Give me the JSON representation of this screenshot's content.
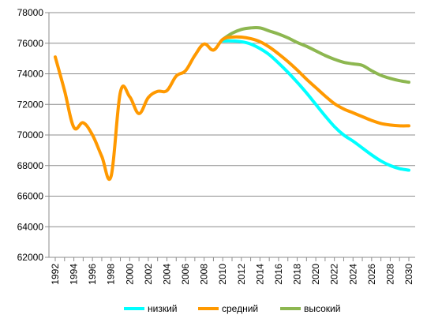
{
  "chart_data": {
    "type": "line",
    "title": "",
    "xlabel": "",
    "ylabel": "",
    "ylim": [
      62000,
      78000
    ],
    "xlim": [
      1992,
      2030
    ],
    "y_ticks": [
      "62000",
      "64000",
      "66000",
      "68000",
      "70000",
      "72000",
      "74000",
      "76000",
      "78000"
    ],
    "x_ticks": [
      "1992",
      "1994",
      "1996",
      "1998",
      "2000",
      "2002",
      "2004",
      "2006",
      "2008",
      "2010",
      "2012",
      "2014",
      "2016",
      "2018",
      "2020",
      "2022",
      "2024",
      "2026",
      "2028",
      "2030"
    ],
    "grid": "horizontal",
    "legend_position": "bottom",
    "series": [
      {
        "name": "низкий",
        "color": "#00ffff",
        "points": [
          [
            2010,
            76150
          ],
          [
            2011,
            76150
          ],
          [
            2012,
            76100
          ],
          [
            2013,
            75950
          ],
          [
            2014,
            75650
          ],
          [
            2015,
            75250
          ],
          [
            2016,
            74700
          ],
          [
            2017,
            74100
          ],
          [
            2018,
            73450
          ],
          [
            2019,
            72750
          ],
          [
            2020,
            72000
          ],
          [
            2021,
            71250
          ],
          [
            2022,
            70550
          ],
          [
            2023,
            70000
          ],
          [
            2024,
            69600
          ],
          [
            2025,
            69150
          ],
          [
            2026,
            68700
          ],
          [
            2027,
            68300
          ],
          [
            2028,
            68000
          ],
          [
            2029,
            67800
          ],
          [
            2030,
            67700
          ]
        ]
      },
      {
        "name": "средний",
        "color": "#ff9900",
        "points": [
          [
            1992,
            75100
          ],
          [
            1993,
            72900
          ],
          [
            1994,
            70500
          ],
          [
            1995,
            70800
          ],
          [
            1996,
            70000
          ],
          [
            1997,
            68600
          ],
          [
            1998,
            67300
          ],
          [
            1999,
            72800
          ],
          [
            2000,
            72500
          ],
          [
            2001,
            71400
          ],
          [
            2002,
            72450
          ],
          [
            2003,
            72850
          ],
          [
            2004,
            72900
          ],
          [
            2005,
            73850
          ],
          [
            2006,
            74200
          ],
          [
            2007,
            75200
          ],
          [
            2008,
            75950
          ],
          [
            2009,
            75550
          ],
          [
            2010,
            76250
          ],
          [
            2011,
            76400
          ],
          [
            2012,
            76400
          ],
          [
            2013,
            76300
          ],
          [
            2014,
            76100
          ],
          [
            2015,
            75750
          ],
          [
            2016,
            75300
          ],
          [
            2017,
            74800
          ],
          [
            2018,
            74250
          ],
          [
            2019,
            73650
          ],
          [
            2020,
            73100
          ],
          [
            2021,
            72550
          ],
          [
            2022,
            72050
          ],
          [
            2023,
            71700
          ],
          [
            2024,
            71450
          ],
          [
            2025,
            71200
          ],
          [
            2026,
            70950
          ],
          [
            2027,
            70750
          ],
          [
            2028,
            70650
          ],
          [
            2029,
            70600
          ],
          [
            2030,
            70600
          ]
        ]
      },
      {
        "name": "высокий",
        "color": "#8db750",
        "points": [
          [
            2010,
            76250
          ],
          [
            2011,
            76650
          ],
          [
            2012,
            76900
          ],
          [
            2013,
            77000
          ],
          [
            2014,
            77000
          ],
          [
            2015,
            76800
          ],
          [
            2016,
            76600
          ],
          [
            2017,
            76350
          ],
          [
            2018,
            76050
          ],
          [
            2019,
            75800
          ],
          [
            2020,
            75500
          ],
          [
            2021,
            75200
          ],
          [
            2022,
            74950
          ],
          [
            2023,
            74750
          ],
          [
            2024,
            74650
          ],
          [
            2025,
            74550
          ],
          [
            2026,
            74200
          ],
          [
            2027,
            73900
          ],
          [
            2028,
            73700
          ],
          [
            2029,
            73550
          ],
          [
            2030,
            73450
          ]
        ]
      }
    ]
  }
}
